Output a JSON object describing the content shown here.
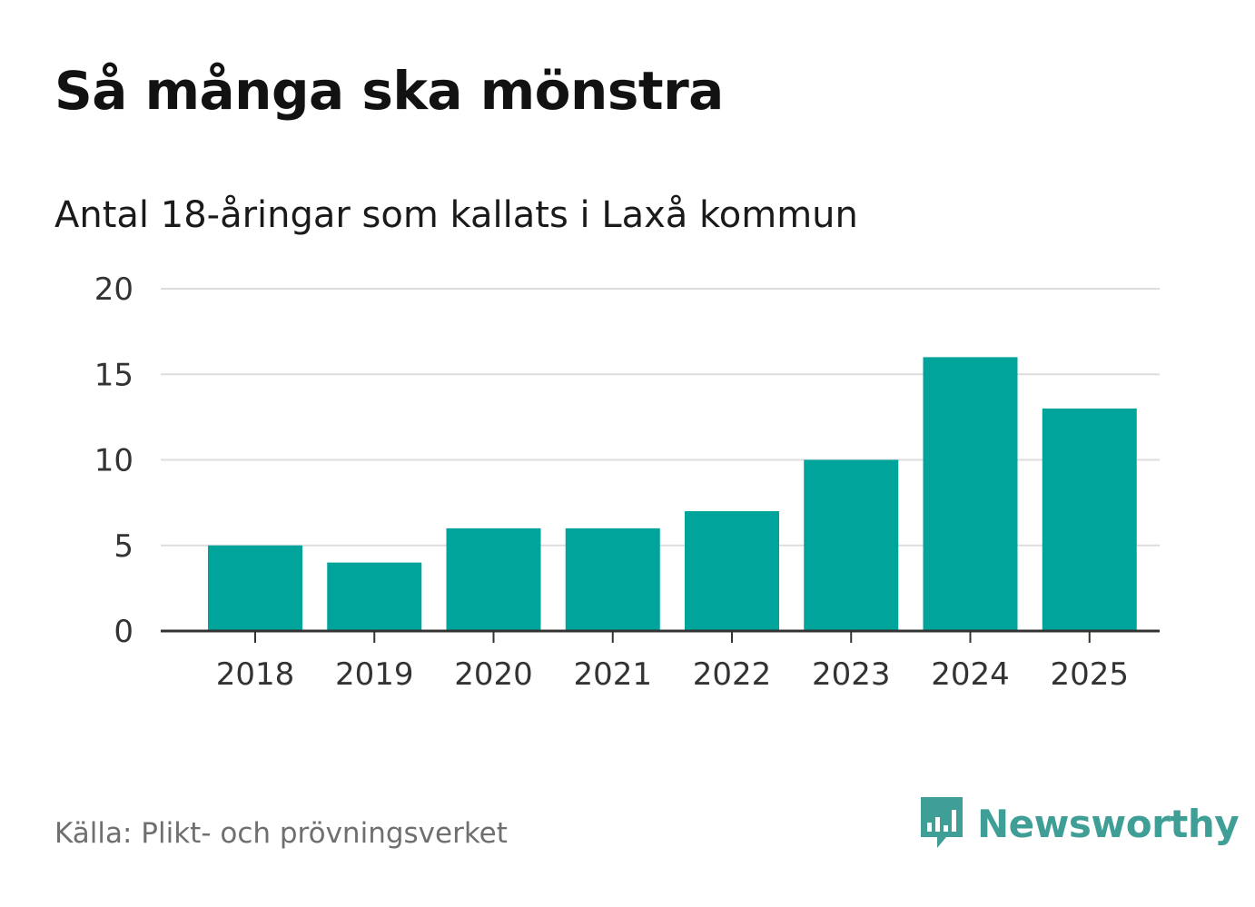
{
  "title": "Så många ska mönstra",
  "subtitle": "Antal 18-åringar som kallats i Laxå kommun",
  "source": "Källa: Plikt- och prövningsverket",
  "brand": {
    "name": "Newsworthy",
    "icon": "newsworthy-logo-icon",
    "color": "#3f9f97"
  },
  "colors": {
    "bar": "#00a49a",
    "grid": "#dddddd",
    "axis": "#333333"
  },
  "chart_data": {
    "type": "bar",
    "title": "Så många ska mönstra",
    "subtitle": "Antal 18-åringar som kallats i Laxå kommun",
    "xlabel": "",
    "ylabel": "",
    "categories": [
      "2018",
      "2019",
      "2020",
      "2021",
      "2022",
      "2023",
      "2024",
      "2025"
    ],
    "values": [
      5,
      4,
      6,
      6,
      7,
      10,
      16,
      13
    ],
    "ylim": [
      0,
      20
    ],
    "yticks": [
      "0",
      "5",
      "10",
      "15",
      "20"
    ],
    "grid": true,
    "legend": "none"
  }
}
